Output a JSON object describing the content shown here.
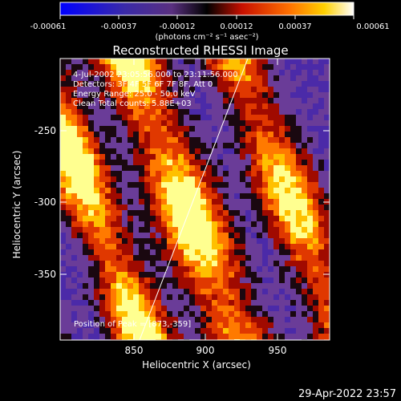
{
  "colorbar": {
    "ticks": [
      "-0.00061",
      "-0.00037",
      "-0.00012",
      "0.00012",
      "0.00037",
      "0.00061"
    ],
    "units_label": "(photons cm⁻² s⁻¹ asec⁻²)"
  },
  "plot": {
    "title": "Reconstructed RHESSI Image",
    "info_lines": [
      "4-Jul-2002 23:05:56.000 to 23:11:56.000",
      "Detectors: 3F 4F 5F 6F 7F 8F, Att 0",
      "Energy Range: 25.0 - 50.0 keV",
      "Clean     Total counts: 5.88E+03"
    ],
    "peak_label": "Position of Peak = [873,-359]",
    "xlabel": "Heliocentric X (arcsec)",
    "ylabel": "Heliocentric Y (arcsec)",
    "xticks": [
      "850",
      "900",
      "950"
    ],
    "yticks": [
      "-250",
      "-300",
      "-350"
    ]
  },
  "timestamp": "29-Apr-2022 23:57"
}
